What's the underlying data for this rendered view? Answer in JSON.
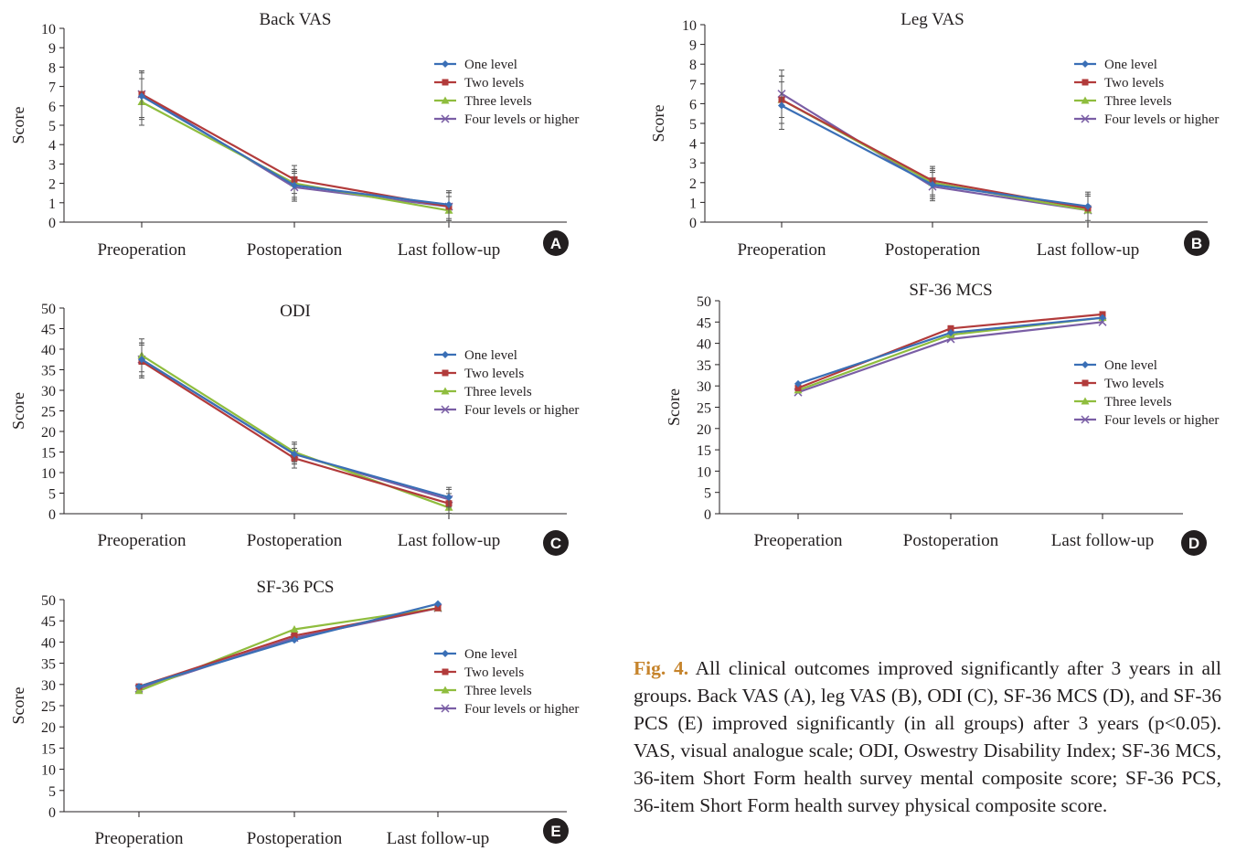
{
  "colors": {
    "One level": "#3a6fb6",
    "Two levels": "#b23b3b",
    "Three levels": "#8fbd3e",
    "Four levels or higher": "#7a5ea5",
    "text": "#231f20",
    "caption_label": "#c6842c"
  },
  "legend_labels": [
    "One level",
    "Two levels",
    "Three levels",
    "Four levels or higher"
  ],
  "chart_data": [
    {
      "type": "line",
      "panel": "A",
      "title": "Back VAS",
      "ylabel": "Score",
      "categories": [
        "Preoperation",
        "Postoperation",
        "Last follow-up"
      ],
      "ylim": [
        0,
        10
      ],
      "yticks": [
        0,
        1,
        2,
        3,
        4,
        5,
        6,
        7,
        8,
        9,
        10
      ],
      "series": [
        {
          "name": "One level",
          "values": [
            6.5,
            1.9,
            0.9
          ]
        },
        {
          "name": "Two levels",
          "values": [
            6.6,
            2.2,
            0.8
          ]
        },
        {
          "name": "Three levels",
          "values": [
            6.2,
            2.0,
            0.6
          ]
        },
        {
          "name": "Four levels or higher",
          "values": [
            6.6,
            1.8,
            0.8
          ]
        }
      ]
    },
    {
      "type": "line",
      "panel": "B",
      "title": "Leg VAS",
      "ylabel": "Score",
      "categories": [
        "Preoperation",
        "Postoperation",
        "Last follow-up"
      ],
      "ylim": [
        0,
        10
      ],
      "yticks": [
        0,
        1,
        2,
        3,
        4,
        5,
        6,
        7,
        8,
        9,
        10
      ],
      "series": [
        {
          "name": "One level",
          "values": [
            5.9,
            1.9,
            0.8
          ]
        },
        {
          "name": "Two levels",
          "values": [
            6.2,
            2.1,
            0.7
          ]
        },
        {
          "name": "Three levels",
          "values": [
            6.2,
            2.0,
            0.6
          ]
        },
        {
          "name": "Four levels or higher",
          "values": [
            6.5,
            1.8,
            0.6
          ]
        }
      ]
    },
    {
      "type": "line",
      "panel": "C",
      "title": "ODI",
      "ylabel": "Score",
      "categories": [
        "Preoperation",
        "Postoperation",
        "Last follow-up"
      ],
      "ylim": [
        0,
        50
      ],
      "yticks": [
        0,
        5,
        10,
        15,
        20,
        25,
        30,
        35,
        40,
        45,
        50
      ],
      "series": [
        {
          "name": "One level",
          "values": [
            37.5,
            14.5,
            4.0
          ]
        },
        {
          "name": "Two levels",
          "values": [
            37.0,
            13.5,
            2.5
          ]
        },
        {
          "name": "Three levels",
          "values": [
            38.5,
            15.0,
            1.5
          ]
        },
        {
          "name": "Four levels or higher",
          "values": [
            37.5,
            14.5,
            3.5
          ]
        }
      ]
    },
    {
      "type": "line",
      "panel": "D",
      "title": "SF-36 MCS",
      "ylabel": "Score",
      "categories": [
        "Preoperation",
        "Postoperation",
        "Last follow-up"
      ],
      "ylim": [
        0,
        50
      ],
      "yticks": [
        0,
        5,
        10,
        15,
        20,
        25,
        30,
        35,
        40,
        45,
        50
      ],
      "series": [
        {
          "name": "One level",
          "values": [
            30.5,
            42.5,
            46.0
          ]
        },
        {
          "name": "Two levels",
          "values": [
            29.5,
            43.5,
            46.8
          ]
        },
        {
          "name": "Three levels",
          "values": [
            29.0,
            42.0,
            46.0
          ]
        },
        {
          "name": "Four levels or higher",
          "values": [
            28.5,
            41.0,
            45.0
          ]
        }
      ]
    },
    {
      "type": "line",
      "panel": "E",
      "title": "SF-36 PCS",
      "ylabel": "Score",
      "categories": [
        "Preoperation",
        "Postoperation",
        "Last follow-up"
      ],
      "ylim": [
        0,
        50
      ],
      "yticks": [
        0,
        5,
        10,
        15,
        20,
        25,
        30,
        35,
        40,
        45,
        50
      ],
      "series": [
        {
          "name": "One level",
          "values": [
            29.5,
            40.5,
            49.0
          ]
        },
        {
          "name": "Two levels",
          "values": [
            29.5,
            41.5,
            48.0
          ]
        },
        {
          "name": "Three levels",
          "values": [
            28.5,
            43.0,
            48.0
          ]
        },
        {
          "name": "Four levels or higher",
          "values": [
            29.0,
            41.0,
            48.0
          ]
        }
      ]
    }
  ],
  "caption": {
    "label": "Fig. 4.",
    "text": " All clinical outcomes improved significantly after 3 years in all groups. Back VAS (A), leg VAS (B), ODI (C), SF-36 MCS (D), and SF-36 PCS (E) improved significantly (in all groups) after 3 years (p<0.05). VAS, visual analogue scale; ODI, Oswestry Disability Index; SF-36 MCS, 36-item Short Form health survey mental composite score; SF-36 PCS, 36-item Short Form health survey physical composite score."
  }
}
